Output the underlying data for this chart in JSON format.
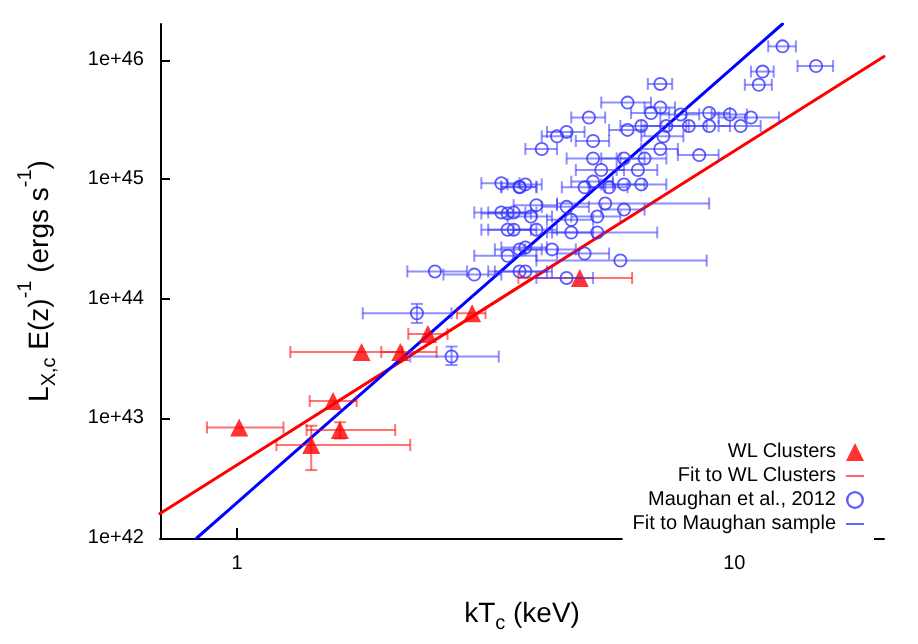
{
  "chart_data": {
    "type": "scatter",
    "xlabel": "kT$_{c}$ (keV)",
    "ylabel": "L$_{X,c}$ E(z)$^{-1}$ (ergs s$^{-1}$)",
    "log": "xy",
    "xlim": [
      0.7,
      20
    ],
    "xticks": [
      1,
      10
    ],
    "ylim": [
      1e+42,
      2e+46
    ],
    "yticks": [
      {
        "value": 1e+42,
        "label": "1e+42"
      },
      {
        "value": 1e+43,
        "label": "1e+43"
      },
      {
        "value": 1e+44,
        "label": "1e+44"
      },
      {
        "value": 1e+45,
        "label": "1e+45"
      },
      {
        "value": 1e+46,
        "label": "1e+46"
      }
    ],
    "grid": false,
    "legend": "bottom right",
    "series": [
      {
        "name": "WL Clusters",
        "marker": "triangle",
        "color": "#ff0000",
        "x": [
          1.01,
          1.41,
          1.61,
          1.56,
          1.78,
          2.13,
          2.42,
          2.97,
          4.89
        ],
        "values": [
          8.4e+42,
          6e+42,
          8e+42,
          1.4e+43,
          3.6e+43,
          3.6e+43,
          5.1e+43,
          7.6e+43,
          1.5e+44
        ],
        "xerrors": [
          [
            0.87,
            1.24
          ],
          [
            1.2,
            2.23
          ],
          [
            1.38,
            2.08
          ],
          [
            1.4,
            1.74
          ],
          [
            1.28,
            2.15
          ],
          [
            1.95,
            2.52
          ],
          [
            2.21,
            2.65
          ],
          [
            2.77,
            3.16
          ],
          [
            3.68,
            6.23
          ]
        ],
        "errors": [
          null,
          [
            3.7e+42,
            8.7e+42
          ],
          [
            6.8e+42,
            9.3e+42
          ],
          null,
          null,
          null,
          null,
          null,
          null
        ]
      },
      {
        "name": "Fit to WL Clusters",
        "type": "line",
        "marker": "none",
        "color": "#ff0000",
        "x": [
          0.7,
          20
        ],
        "values": [
          1.6e+42,
          1.07e+46
        ]
      },
      {
        "name": "Maughan et al., 2012",
        "marker": "circle",
        "color": "#3333ff",
        "x": [
          12.5,
          14.6,
          11.4,
          11.2,
          7.1,
          6.1,
          7.1,
          5.1,
          7.8,
          8.9,
          9.8,
          10.8,
          6.8,
          4.6,
          4.4,
          4.1,
          5.2,
          6.1,
          6.5,
          7.3,
          8.1,
          8.9,
          10.3,
          7.2,
          8.5,
          7.1,
          5.2,
          6.0,
          6.6,
          5.4,
          6.4,
          3.8,
          3.7,
          5.2,
          6.0,
          6.5,
          5.0,
          5.6,
          4.0,
          4.6,
          5.5,
          3.5,
          3.9,
          4.7,
          5.3,
          6.0,
          3.6,
          4.0,
          4.7,
          5.3,
          3.7,
          4.3,
          5.0,
          5.9,
          3.8,
          4.6,
          3.4,
          3.7,
          3.4,
          3.6,
          3.5,
          3.8,
          2.5,
          3.0,
          3.5,
          3.7,
          2.3,
          2.7
        ],
        "values": [
          1.3e+46,
          8.9e+45,
          8e+45,
          6.2e+45,
          6.3e+45,
          4.4e+45,
          4e+45,
          3.3e+45,
          3.5e+45,
          3.6e+45,
          3.5e+45,
          3.3e+45,
          3.6e+45,
          2.5e+45,
          2.3e+45,
          1.8e+45,
          2.1e+45,
          2.6e+45,
          2.8e+45,
          2.8e+45,
          2.8e+45,
          2.8e+45,
          2.8e+45,
          2.3e+45,
          1.6e+45,
          1.8e+45,
          1.5e+45,
          1.5e+45,
          1.5e+45,
          1.2e+45,
          1.2e+45,
          9.1e+44,
          8.6e+44,
          9.6e+44,
          9.1e+44,
          9.1e+44,
          8.6e+44,
          8.6e+44,
          6.1e+44,
          5.9e+44,
          6.3e+44,
          5.2e+44,
          4.9e+44,
          4.6e+44,
          4.9e+44,
          5.6e+44,
          3.8e+44,
          3.8e+44,
          3.6e+44,
          3.6e+44,
          2.6e+44,
          2.6e+44,
          2.4e+44,
          2.1e+44,
          1.7e+44,
          1.5e+44,
          9.3e+44,
          8.7e+44,
          5.3e+44,
          5.3e+44,
          3.8e+44,
          2.7e+44,
          1.7e+44,
          1.6e+44,
          2.3e+44,
          1.7e+44,
          7.6e+43,
          3.3e+43
        ],
        "xerrors": [
          0.8,
          1.2,
          0.6,
          0.7,
          0.4,
          0.7,
          0.5,
          0.4,
          0.7,
          0.9,
          0.8,
          1.5,
          0.6,
          0.4,
          0.3,
          0.3,
          0.4,
          0.5,
          0.6,
          0.8,
          0.7,
          0.9,
          1.0,
          0.7,
          0.8,
          0.6,
          0.6,
          0.6,
          0.7,
          0.6,
          0.6,
          0.3,
          0.3,
          0.5,
          0.6,
          0.8,
          0.5,
          0.5,
          0.4,
          0.5,
          [
            4.4,
            8.9
          ],
          0.4,
          0.4,
          0.5,
          0.6,
          0.6,
          0.4,
          0.4,
          0.5,
          [
            4.3,
            7.0
          ],
          0.4,
          0.5,
          0.6,
          [
            4.0,
            8.8
          ],
          0.5,
          0.6,
          0.3,
          0.3,
          0.4,
          0.4,
          0.4,
          0.4,
          [
            2.2,
            2.9
          ],
          0.4,
          0.5,
          0.5,
          [
            1.79,
            2.7
          ],
          [
            2.23,
            3.36
          ]
        ],
        "errors": [
          null,
          null,
          null,
          null,
          null,
          null,
          null,
          null,
          null,
          null,
          null,
          null,
          null,
          null,
          null,
          null,
          null,
          null,
          null,
          null,
          null,
          null,
          null,
          null,
          null,
          null,
          null,
          null,
          null,
          null,
          null,
          null,
          null,
          null,
          null,
          null,
          null,
          null,
          null,
          null,
          null,
          null,
          null,
          null,
          null,
          null,
          null,
          null,
          null,
          null,
          null,
          null,
          null,
          null,
          null,
          null,
          null,
          null,
          null,
          null,
          null,
          null,
          null,
          null,
          null,
          null,
          [
            6.3e+43,
            9.1e+43
          ],
          [
            2.8e+43,
            4e+43
          ]
        ]
      },
      {
        "name": "Fit to Maughan sample",
        "type": "line",
        "marker": "none",
        "color": "#0000ff",
        "x": [
          0.83,
          12.5
        ],
        "values": [
          1e+42,
          2e+46
        ]
      }
    ]
  }
}
